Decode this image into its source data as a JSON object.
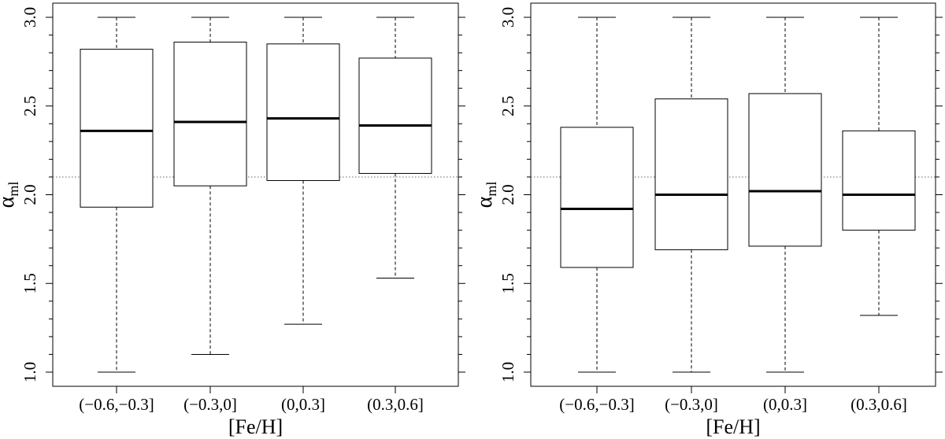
{
  "chart_data": [
    {
      "type": "box",
      "xlabel": "[Fe/H]",
      "ylabel": "α",
      "ylabel_sub": "ml",
      "ylim": [
        1.0,
        3.0
      ],
      "yticks": [
        "1.0",
        "1.5",
        "2.0",
        "2.5",
        "3.0"
      ],
      "reference_line": 2.1,
      "categories": [
        "(−0.6,−0.3]",
        "(−0.3,0]",
        "(0,0.3]",
        "(0.3,0.6]"
      ],
      "boxes": [
        {
          "whisker_low": 1.0,
          "q1": 1.93,
          "median": 2.36,
          "q3": 2.82,
          "whisker_high": 3.0
        },
        {
          "whisker_low": 1.1,
          "q1": 2.05,
          "median": 2.41,
          "q3": 2.86,
          "whisker_high": 3.0
        },
        {
          "whisker_low": 1.27,
          "q1": 2.08,
          "median": 2.43,
          "q3": 2.85,
          "whisker_high": 3.0
        },
        {
          "whisker_low": 1.53,
          "q1": 2.12,
          "median": 2.39,
          "q3": 2.77,
          "whisker_high": 3.0
        }
      ]
    },
    {
      "type": "box",
      "xlabel": "[Fe/H]",
      "ylabel": "α",
      "ylabel_sub": "ml",
      "ylim": [
        1.0,
        3.0
      ],
      "yticks": [
        "1.0",
        "1.5",
        "2.0",
        "2.5",
        "3.0"
      ],
      "reference_line": 2.1,
      "categories": [
        "(−0.6,−0.3]",
        "(−0.3,0]",
        "(0,0.3]",
        "(0.3,0.6]"
      ],
      "boxes": [
        {
          "whisker_low": 1.0,
          "q1": 1.59,
          "median": 1.92,
          "q3": 2.38,
          "whisker_high": 3.0
        },
        {
          "whisker_low": 1.0,
          "q1": 1.69,
          "median": 2.0,
          "q3": 2.54,
          "whisker_high": 3.0
        },
        {
          "whisker_low": 1.0,
          "q1": 1.71,
          "median": 2.02,
          "q3": 2.57,
          "whisker_high": 3.0
        },
        {
          "whisker_low": 1.32,
          "q1": 1.8,
          "median": 2.0,
          "q3": 2.36,
          "whisker_high": 3.0
        }
      ]
    }
  ]
}
